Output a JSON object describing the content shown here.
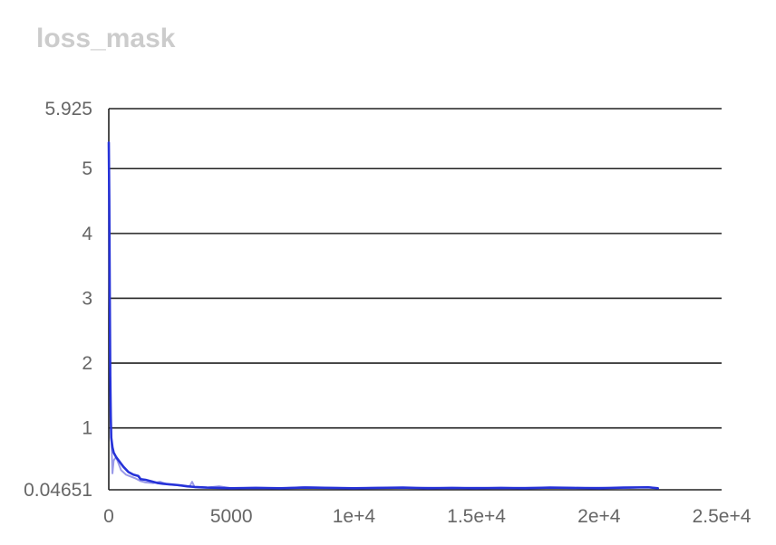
{
  "chart_data": {
    "type": "line",
    "title": "loss_mask",
    "xlabel": "",
    "ylabel": "",
    "xlim": [
      0,
      25000
    ],
    "ylim": [
      0.04651,
      5.925
    ],
    "x_ticks": [
      {
        "value": 0,
        "label": "0"
      },
      {
        "value": 5000,
        "label": "5000"
      },
      {
        "value": 10000,
        "label": "1e+4"
      },
      {
        "value": 15000,
        "label": "1.5e+4"
      },
      {
        "value": 20000,
        "label": "2e+4"
      },
      {
        "value": 25000,
        "label": "2.5e+4"
      }
    ],
    "y_ticks": [
      {
        "value": 0.04651,
        "label": "0.04651"
      },
      {
        "value": 1,
        "label": "1"
      },
      {
        "value": 2,
        "label": "2"
      },
      {
        "value": 3,
        "label": "3"
      },
      {
        "value": 4,
        "label": "4"
      },
      {
        "value": 5,
        "label": "5"
      },
      {
        "value": 5.925,
        "label": "5.925"
      }
    ],
    "grid": true,
    "series": [
      {
        "role": "raw",
        "color": "#9a9ae8",
        "x": [
          0,
          30,
          60,
          100,
          150,
          200,
          300,
          400,
          500,
          700,
          900,
          1100,
          1300,
          1500,
          1800,
          2100,
          2400,
          2700,
          3000,
          3300,
          3400,
          3500,
          4000,
          4500,
          5000,
          6000,
          7000,
          8000,
          9000,
          10000,
          11000,
          12000,
          13000,
          14000,
          15000,
          16000,
          17000,
          18000,
          19000,
          20000,
          21000,
          22000,
          22400
        ],
        "values": [
          5.4,
          3.2,
          1.6,
          0.9,
          0.3,
          0.5,
          0.55,
          0.45,
          0.35,
          0.28,
          0.25,
          0.22,
          0.18,
          0.16,
          0.15,
          0.17,
          0.13,
          0.12,
          0.11,
          0.1,
          0.17,
          0.09,
          0.08,
          0.1,
          0.07,
          0.08,
          0.07,
          0.09,
          0.08,
          0.07,
          0.08,
          0.07,
          0.08,
          0.07,
          0.08,
          0.07,
          0.08,
          0.08,
          0.07,
          0.08,
          0.07,
          0.09,
          0.07
        ]
      },
      {
        "role": "smoothed",
        "color": "#2632d8",
        "x": [
          0,
          20,
          40,
          60,
          80,
          100,
          150,
          200,
          300,
          400,
          500,
          600,
          800,
          1000,
          1200,
          1300,
          1500,
          1800,
          2000,
          2200,
          2500,
          2800,
          3000,
          3200,
          3500,
          4000,
          4500,
          5000,
          6000,
          7000,
          8000,
          9000,
          10000,
          11000,
          12000,
          13000,
          14000,
          15000,
          16000,
          17000,
          18000,
          19000,
          20000,
          21000,
          22000,
          22400
        ],
        "values": [
          5.4,
          4.5,
          3.0,
          1.8,
          1.2,
          0.85,
          0.7,
          0.62,
          0.55,
          0.5,
          0.45,
          0.4,
          0.32,
          0.28,
          0.26,
          0.21,
          0.2,
          0.17,
          0.15,
          0.14,
          0.13,
          0.12,
          0.11,
          0.1,
          0.09,
          0.08,
          0.075,
          0.07,
          0.075,
          0.07,
          0.08,
          0.075,
          0.07,
          0.075,
          0.08,
          0.07,
          0.075,
          0.07,
          0.075,
          0.07,
          0.08,
          0.075,
          0.07,
          0.08,
          0.085,
          0.07
        ]
      }
    ]
  }
}
